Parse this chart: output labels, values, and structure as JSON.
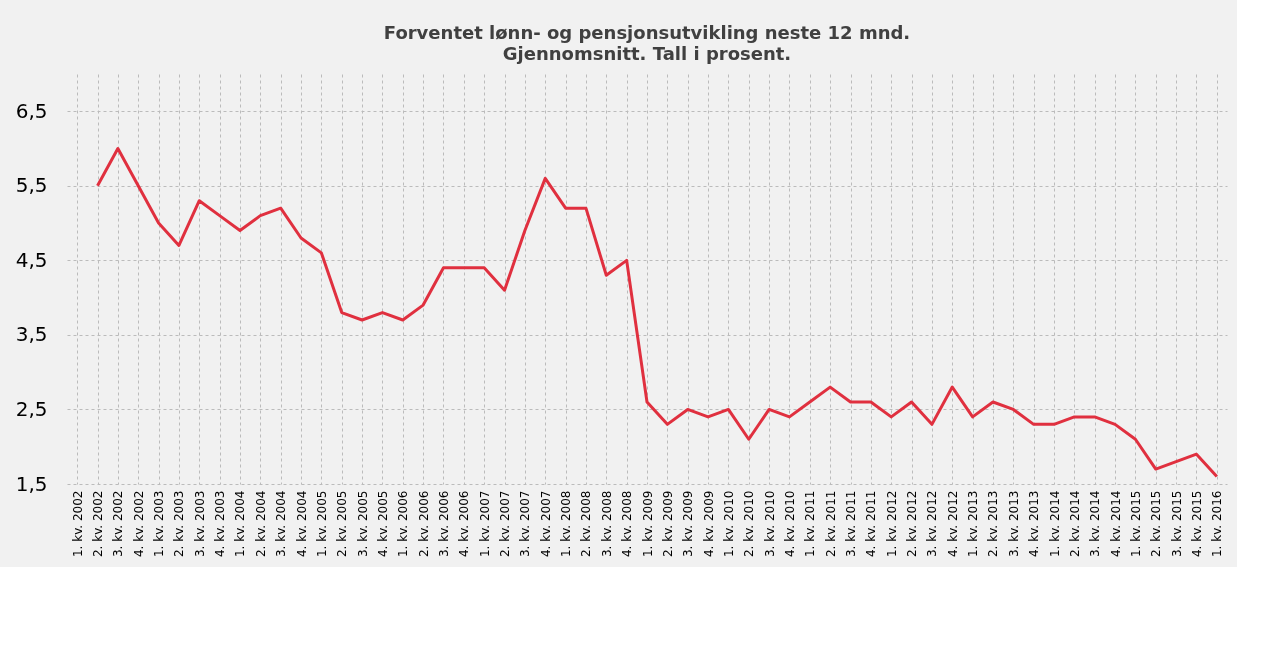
{
  "chart_data": {
    "type": "line",
    "title": "Forventet lønn- og pensjonsutvikling neste 12 mnd.",
    "subtitle": "Gjennomsnitt. Tall i prosent.",
    "categories": [
      "1. kv. 2002",
      "2. kv. 2002",
      "3. kv. 2002",
      "4. kv. 2002",
      "1. kv. 2003",
      "2. kv. 2003",
      "3. kv. 2003",
      "4. kv. 2003",
      "1. kv. 2004",
      "2. kv. 2004",
      "3. kv. 2004",
      "4. kv. 2004",
      "1. kv. 2005",
      "2. kv. 2005",
      "3. kv. 2005",
      "4. kv. 2005",
      "1. kv. 2006",
      "2. kv. 2006",
      "3. kv. 2006",
      "4. kv. 2006",
      "1. kv. 2007",
      "2. kv. 2007",
      "3. kv. 2007",
      "4. kv. 2007",
      "1. kv. 2008",
      "2. kv. 2008",
      "3. kv. 2008",
      "4. kv. 2008",
      "1. kv. 2009",
      "2. kv. 2009",
      "3. kv. 2009",
      "4. kv. 2009",
      "1. kv. 2010",
      "2. kv. 2010",
      "3. kv. 2010",
      "4. kv. 2010",
      "1. kv. 2011",
      "2. kv. 2011",
      "3. kv. 2011",
      "4. kv. 2011",
      "1. kv. 2012",
      "2. kv. 2012",
      "3. kv. 2012",
      "4. kv. 2012",
      "1. kv. 2013",
      "2. kv. 2013",
      "3. kv. 2013",
      "4. kv. 2013",
      "1. kv. 2014",
      "2. kv. 2014",
      "3. kv. 2014",
      "4. kv. 2014",
      "1. kv. 2015",
      "2. kv. 2015",
      "3. kv. 2015",
      "4. kv. 2015",
      "1. kv. 2016"
    ],
    "series": [
      {
        "color": "#e0303f",
        "values": [
          null,
          5.5,
          6.0,
          5.5,
          5.0,
          4.7,
          5.3,
          5.1,
          4.9,
          5.1,
          5.2,
          4.8,
          4.6,
          3.8,
          3.7,
          3.8,
          3.7,
          3.9,
          4.4,
          4.4,
          4.4,
          4.1,
          4.9,
          5.6,
          5.2,
          5.2,
          4.3,
          4.5,
          2.6,
          2.3,
          2.5,
          2.4,
          2.5,
          2.1,
          2.5,
          2.4,
          2.6,
          2.8,
          2.6,
          2.6,
          2.4,
          2.6,
          2.3,
          2.8,
          2.4,
          2.6,
          2.5,
          2.3,
          2.3,
          2.4,
          2.4,
          2.3,
          2.1,
          1.7,
          1.8,
          1.9,
          1.6
        ]
      }
    ],
    "ylim": [
      1.5,
      7.0
    ],
    "yticks": [
      {
        "value": 1.5,
        "label": "1,5"
      },
      {
        "value": 2.5,
        "label": "2,5"
      },
      {
        "value": 3.5,
        "label": "3,5"
      },
      {
        "value": 4.5,
        "label": "4,5"
      },
      {
        "value": 5.5,
        "label": "5,5"
      },
      {
        "value": 6.5,
        "label": "6,5"
      }
    ],
    "grid": true,
    "line_style": "solid",
    "marker": "none"
  }
}
